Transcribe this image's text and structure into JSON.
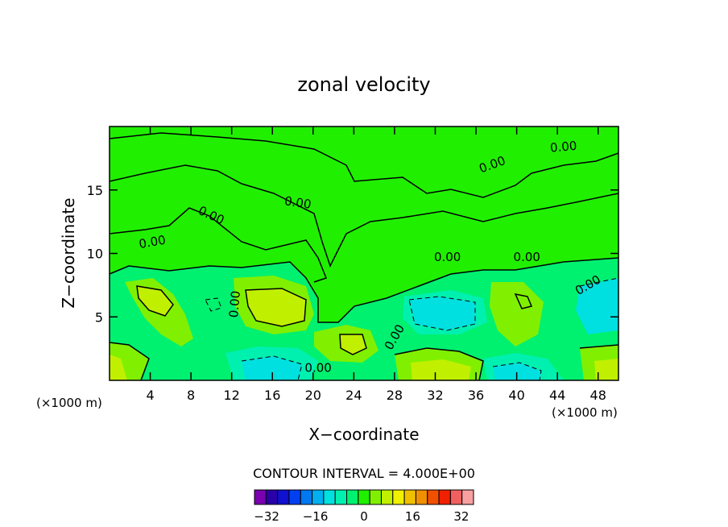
{
  "chart_data": {
    "type": "heatmap",
    "title": "zonal velocity",
    "xlabel": "X−coordinate",
    "ylabel": "Z−coordinate",
    "x_unit_left": "(×1000 m)",
    "x_unit_right": "(×1000 m)",
    "xlim": [
      0,
      50
    ],
    "ylim": [
      0,
      20
    ],
    "x_ticks": [
      4,
      8,
      12,
      16,
      20,
      24,
      28,
      32,
      36,
      40,
      44,
      48
    ],
    "y_ticks": [
      5,
      10,
      15
    ],
    "contour_interval_text": "CONTOUR INTERVAL = 4.000E+00",
    "contour_labels": [
      "0.00",
      "0.00",
      "0.00",
      "0.00",
      "0.00",
      "0.00",
      "0.00",
      "0.00",
      "0.00",
      "0.00",
      "0.00"
    ],
    "colorbar": {
      "levels": [
        -36,
        -32,
        -28,
        -24,
        -20,
        -16,
        -12,
        -8,
        -4,
        0,
        4,
        8,
        12,
        16,
        20,
        24,
        28,
        32,
        36
      ],
      "colors": [
        "#7a00b0",
        "#2a00a8",
        "#1010d0",
        "#0040f0",
        "#0078f0",
        "#00b0f0",
        "#00e0e0",
        "#00f0b0",
        "#00f070",
        "#20f000",
        "#80f000",
        "#c0f000",
        "#f0f000",
        "#f0c000",
        "#f09000",
        "#f05000",
        "#f02000",
        "#f06060",
        "#f8a0a0"
      ],
      "tick_values": [
        -32,
        -16,
        0,
        16,
        32
      ],
      "tick_labels": [
        "−32",
        "−16",
        "0",
        "16",
        "32"
      ]
    }
  }
}
